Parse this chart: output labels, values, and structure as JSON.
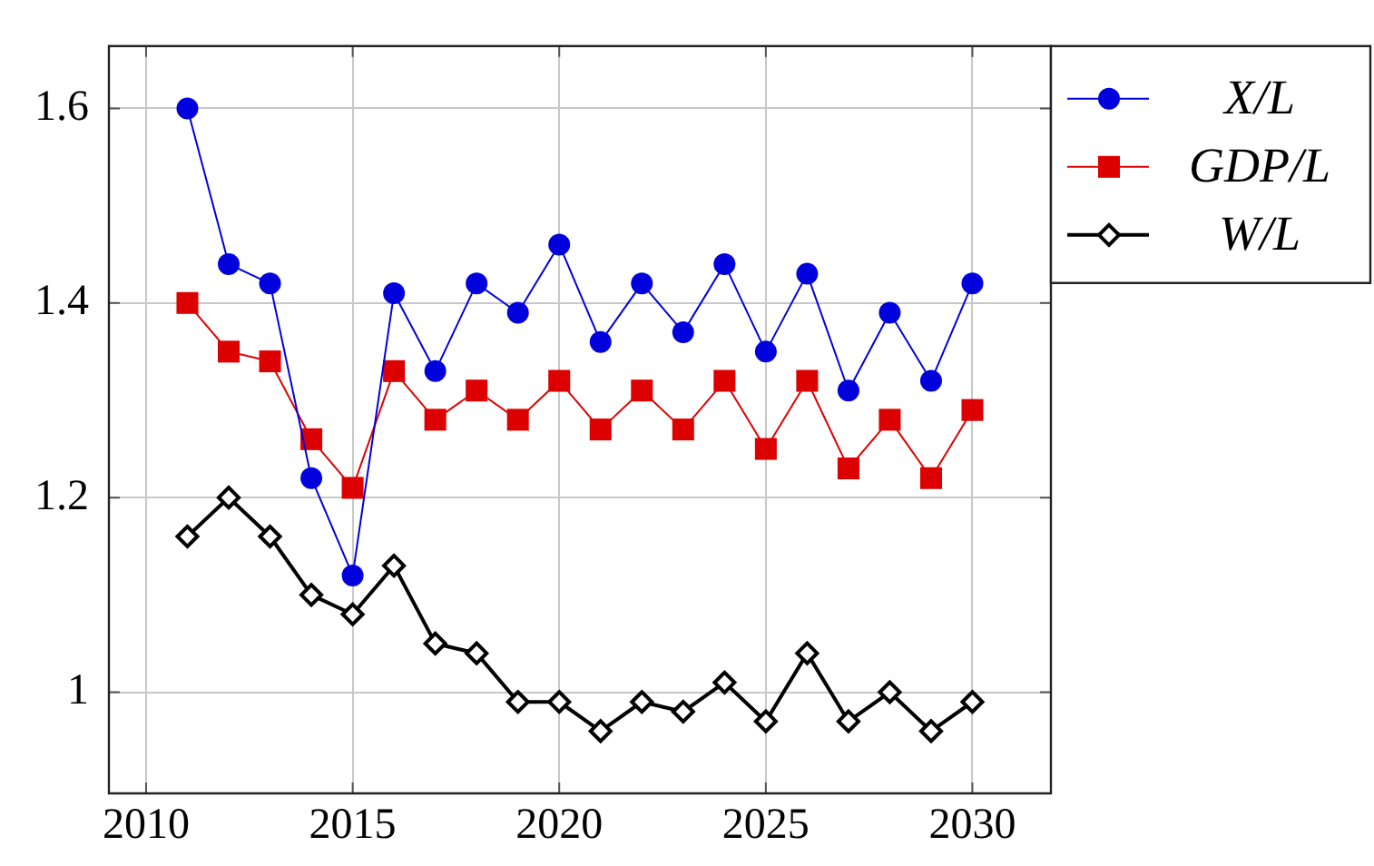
{
  "chart_data": {
    "type": "line",
    "x": [
      2011,
      2012,
      2013,
      2014,
      2015,
      2016,
      2017,
      2018,
      2019,
      2020,
      2021,
      2022,
      2023,
      2024,
      2025,
      2026,
      2027,
      2028,
      2029,
      2030
    ],
    "series": [
      {
        "name": "X/L",
        "color": "#0000dd",
        "marker": "circle",
        "values": [
          1.6,
          1.44,
          1.42,
          1.22,
          1.12,
          1.41,
          1.33,
          1.42,
          1.39,
          1.46,
          1.36,
          1.42,
          1.37,
          1.44,
          1.35,
          1.43,
          1.31,
          1.39,
          1.32,
          1.42
        ]
      },
      {
        "name": "GDP/L",
        "color": "#dd0000",
        "marker": "square",
        "values": [
          1.4,
          1.35,
          1.34,
          1.26,
          1.21,
          1.33,
          1.28,
          1.31,
          1.28,
          1.32,
          1.27,
          1.31,
          1.27,
          1.32,
          1.25,
          1.32,
          1.23,
          1.28,
          1.22,
          1.29
        ]
      },
      {
        "name": "W/L",
        "color": "#000000",
        "marker": "diamond",
        "values": [
          1.16,
          1.2,
          1.16,
          1.1,
          1.08,
          1.13,
          1.05,
          1.04,
          0.99,
          0.99,
          0.96,
          0.99,
          0.98,
          1.01,
          0.97,
          1.04,
          0.97,
          1.0,
          0.96,
          0.99
        ]
      }
    ],
    "xlim": [
      2009.1,
      2031.9
    ],
    "xticks": [
      2010,
      2015,
      2020,
      2025,
      2030
    ],
    "ylim": [
      0.896,
      1.664
    ],
    "yticks": [
      1,
      1.2,
      1.4,
      1.6
    ],
    "grid": true,
    "legend": "top right"
  }
}
